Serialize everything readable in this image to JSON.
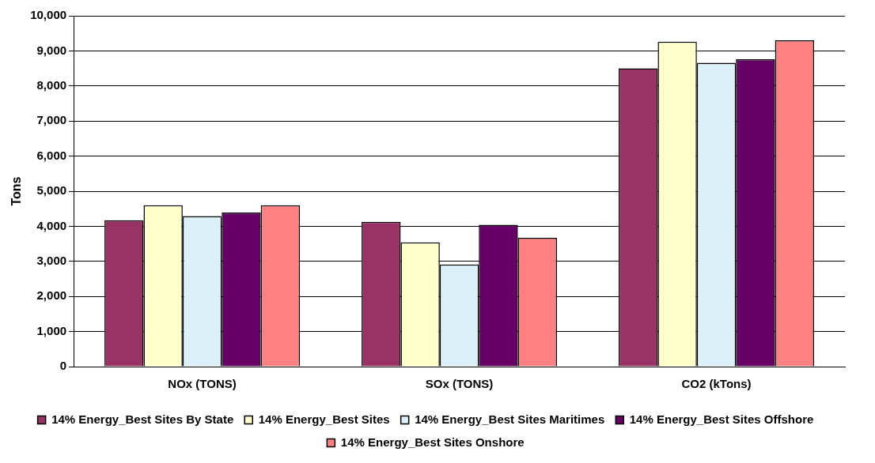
{
  "chart_data": {
    "type": "bar",
    "ylabel": "Tons",
    "categories": [
      "NOx (TONS)",
      "SOx (TONS)",
      "CO2 (kTons)"
    ],
    "series": [
      {
        "name": "14% Energy_Best Sites By State",
        "color": "#993366",
        "values": [
          4170,
          4130,
          8500
        ]
      },
      {
        "name": "14% Energy_Best Sites",
        "color": "#ffffcc",
        "values": [
          4600,
          3540,
          9260
        ]
      },
      {
        "name": "14% Energy_Best Sites Maritimes",
        "color": "#dcf0fa",
        "values": [
          4290,
          2910,
          8660
        ]
      },
      {
        "name": "14% Energy_Best Sites Offshore",
        "color": "#660066",
        "values": [
          4390,
          4040,
          8760
        ]
      },
      {
        "name": "14% Energy_Best Sites Onshore",
        "color": "#ff8080",
        "values": [
          4600,
          3670,
          9300
        ]
      }
    ],
    "ylim": [
      0,
      10000
    ],
    "yticks": [
      0,
      {
        "value": 1000,
        "label": "1,000"
      },
      {
        "value": 2000,
        "label": "2,000"
      },
      {
        "value": 3000,
        "label": "3,000"
      },
      {
        "value": 4000,
        "label": "4,000"
      },
      {
        "value": 5000,
        "label": "5,000"
      },
      {
        "value": 6000,
        "label": "6,000"
      },
      {
        "value": 7000,
        "label": "7,000"
      },
      {
        "value": 8000,
        "label": "8,000"
      },
      {
        "value": 9000,
        "label": "9,000"
      },
      {
        "value": 10000,
        "label": "10,000"
      }
    ],
    "grid": "y",
    "legend": "bottom"
  }
}
